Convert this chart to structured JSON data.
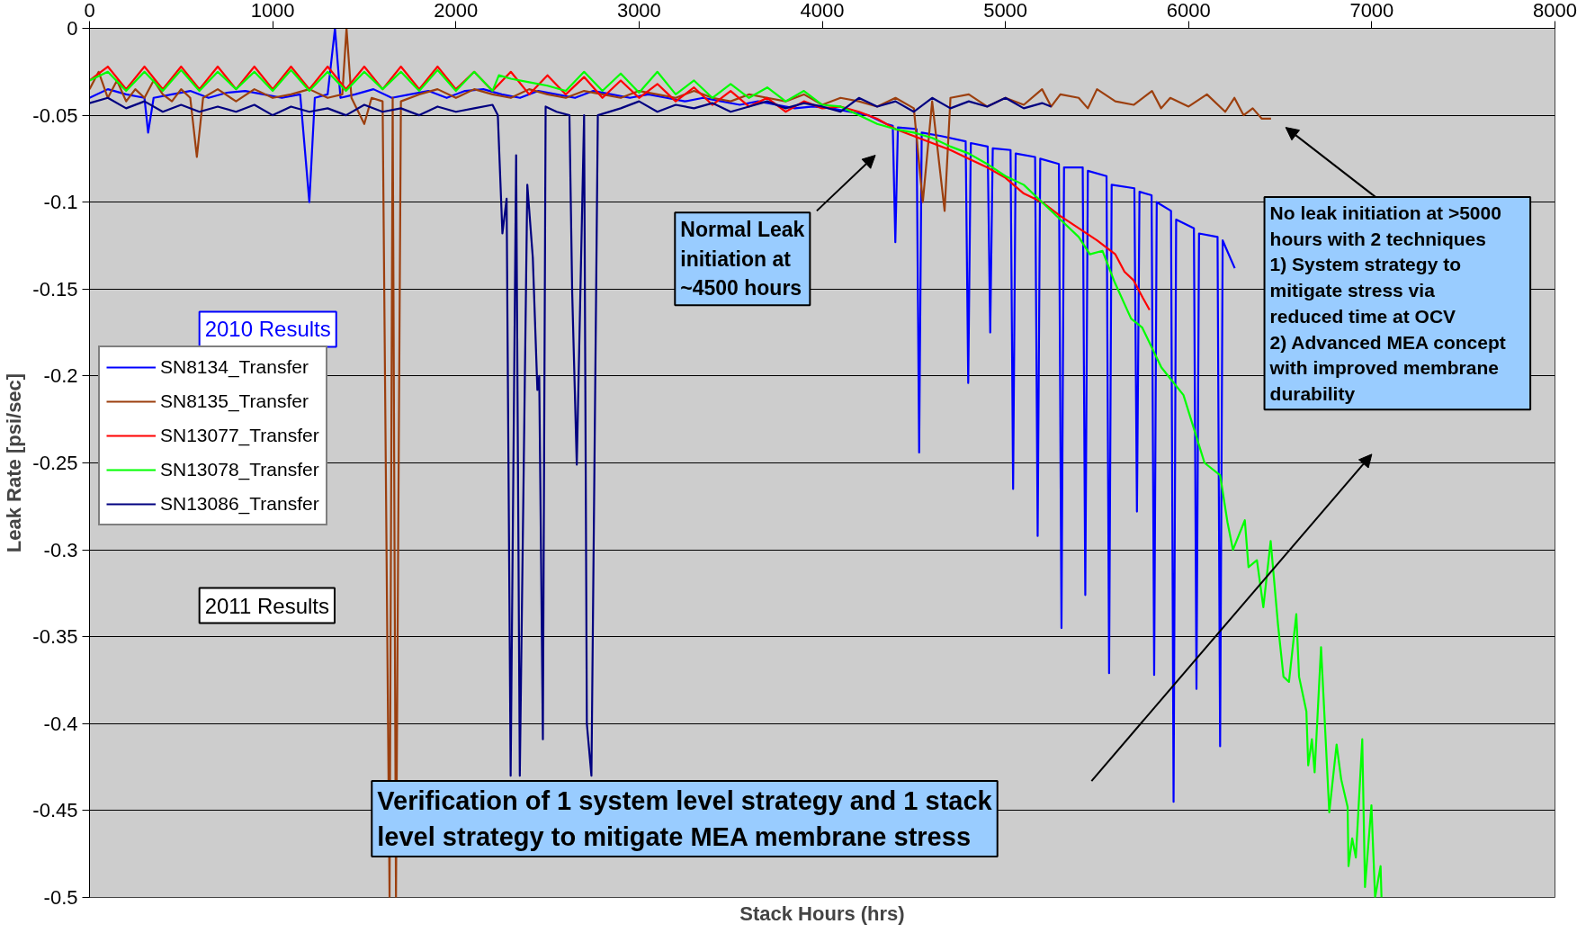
{
  "chart_data": {
    "type": "line",
    "xlabel": "Stack Hours (hrs)",
    "ylabel": "Leak Rate [psi/sec]",
    "xlim": [
      0,
      8000
    ],
    "xticks": [
      0,
      1000,
      2000,
      3000,
      4000,
      5000,
      6000,
      7000,
      8000
    ],
    "ylim": [
      -0.5,
      0
    ],
    "yticks": [
      0,
      -0.05,
      -0.1,
      -0.15,
      -0.2,
      -0.25,
      -0.3,
      -0.35,
      -0.4,
      -0.45,
      -0.5
    ],
    "grid": "y",
    "legend": "left",
    "line_style": "solid",
    "marker": "none",
    "annotations": [
      "2010 Results",
      "2011 Results",
      "Normal Leak\ninitiation at\n~4500 hours",
      "No leak initiation at >5000\nhours with 2 techniques\n  1) System strategy to\n      mitigate stress via\n      reduced time at OCV\n2) Advanced MEA concept\n     with improved membrane\n     durability",
      "Verification of 1 system level strategy and 1 stack\nlevel strategy to mitigate MEA membrane stress"
    ],
    "series": [
      {
        "name": "SN8134_Transfer",
        "color": "#0000ff",
        "x": [
          0,
          100,
          200,
          300,
          320,
          350,
          450,
          550,
          650,
          750,
          850,
          950,
          1050,
          1150,
          1200,
          1230,
          1300,
          1340,
          1370,
          1450,
          1550,
          1650,
          1750,
          1850,
          1950,
          2050,
          2150,
          2250,
          2350,
          2450,
          2550,
          2650,
          2750,
          2850,
          2950,
          3050,
          3150,
          3250,
          3350,
          3450,
          3550,
          3650,
          3750,
          3850,
          3950,
          4050,
          4150,
          4250,
          4350,
          4385,
          4399,
          4413,
          4515,
          4529,
          4543,
          4650,
          4783,
          4797,
          4811,
          4903,
          4917,
          4931,
          5028,
          5042,
          5056,
          5162,
          5176,
          5190,
          5292,
          5306,
          5320,
          5422,
          5436,
          5450,
          5552,
          5566,
          5580,
          5704,
          5718,
          5732,
          5798,
          5812,
          5826,
          5904,
          5918,
          5932,
          6029,
          6043,
          6057,
          6158,
          6172,
          6186,
          6252
        ],
        "values": [
          -0.04,
          -0.035,
          -0.038,
          -0.04,
          -0.06,
          -0.04,
          -0.038,
          -0.036,
          -0.04,
          -0.037,
          -0.036,
          -0.038,
          -0.04,
          -0.038,
          -0.1,
          -0.04,
          -0.038,
          0,
          -0.04,
          -0.038,
          -0.035,
          -0.04,
          -0.038,
          -0.036,
          -0.04,
          -0.036,
          -0.035,
          -0.038,
          -0.04,
          -0.036,
          -0.038,
          -0.04,
          -0.036,
          -0.038,
          -0.04,
          -0.038,
          -0.04,
          -0.042,
          -0.04,
          -0.042,
          -0.044,
          -0.042,
          -0.044,
          -0.046,
          -0.045,
          -0.046,
          -0.048,
          -0.05,
          -0.055,
          -0.056,
          -0.123,
          -0.057,
          -0.058,
          -0.244,
          -0.06,
          -0.062,
          -0.065,
          -0.204,
          -0.066,
          -0.068,
          -0.175,
          -0.069,
          -0.07,
          -0.265,
          -0.072,
          -0.074,
          -0.292,
          -0.075,
          -0.078,
          -0.345,
          -0.08,
          -0.08,
          -0.326,
          -0.082,
          -0.085,
          -0.371,
          -0.09,
          -0.092,
          -0.278,
          -0.094,
          -0.096,
          -0.372,
          -0.1,
          -0.105,
          -0.445,
          -0.11,
          -0.115,
          -0.38,
          -0.118,
          -0.12,
          -0.413,
          -0.122,
          -0.138
        ]
      },
      {
        "name": "SN8135_Transfer",
        "color": "#9c3f0e",
        "x": [
          0,
          50,
          100,
          150,
          200,
          250,
          300,
          350,
          400,
          450,
          500,
          550,
          586,
          620,
          700,
          800,
          900,
          1000,
          1100,
          1200,
          1300,
          1380,
          1403,
          1430,
          1500,
          1540,
          1600,
          1638,
          1655,
          1673,
          1700,
          1800,
          1900,
          2000,
          2100,
          2200,
          2300,
          2400,
          2500,
          2600,
          2700,
          2800,
          2900,
          3000,
          3100,
          3200,
          3300,
          3400,
          3500,
          3600,
          3700,
          3800,
          3900,
          4000,
          4100,
          4200,
          4300,
          4400,
          4500,
          4549,
          4600,
          4668,
          4700,
          4800,
          4900,
          5000,
          5100,
          5200,
          5250,
          5300,
          5400,
          5450,
          5500,
          5600,
          5700,
          5800,
          5850,
          5900,
          6000,
          6100,
          6200,
          6250,
          6300,
          6350,
          6400,
          6450
        ],
        "values": [
          -0.035,
          -0.025,
          -0.04,
          -0.03,
          -0.042,
          -0.035,
          -0.04,
          -0.03,
          -0.038,
          -0.042,
          -0.035,
          -0.04,
          -0.074,
          -0.04,
          -0.035,
          -0.042,
          -0.035,
          -0.04,
          -0.038,
          -0.035,
          -0.04,
          -0.038,
          0,
          -0.04,
          -0.055,
          -0.04,
          -0.042,
          -0.5,
          -0.04,
          -0.5,
          -0.042,
          -0.038,
          -0.035,
          -0.04,
          -0.035,
          -0.038,
          -0.04,
          -0.035,
          -0.038,
          -0.04,
          -0.036,
          -0.038,
          -0.04,
          -0.036,
          -0.038,
          -0.04,
          -0.036,
          -0.04,
          -0.042,
          -0.038,
          -0.04,
          -0.042,
          -0.038,
          -0.044,
          -0.04,
          -0.042,
          -0.045,
          -0.04,
          -0.046,
          -0.1,
          -0.042,
          -0.105,
          -0.04,
          -0.038,
          -0.045,
          -0.04,
          -0.044,
          -0.035,
          -0.045,
          -0.038,
          -0.04,
          -0.046,
          -0.035,
          -0.042,
          -0.044,
          -0.036,
          -0.046,
          -0.04,
          -0.045,
          -0.038,
          -0.048,
          -0.04,
          -0.05,
          -0.046,
          -0.052,
          -0.052
        ]
      },
      {
        "name": "SN13077_Transfer",
        "color": "#ff0000",
        "x": [
          0,
          100,
          200,
          300,
          400,
          500,
          600,
          700,
          800,
          900,
          1000,
          1100,
          1200,
          1300,
          1400,
          1500,
          1600,
          1700,
          1800,
          1900,
          2000,
          2100,
          2200,
          2300,
          2400,
          2500,
          2600,
          2700,
          2800,
          2900,
          3000,
          3100,
          3200,
          3300,
          3400,
          3500,
          3600,
          3700,
          3800,
          3900,
          4000,
          4100,
          4200,
          4300,
          4400,
          4500,
          4600,
          4700,
          4800,
          4900,
          5000,
          5100,
          5200,
          5300,
          5400,
          5500,
          5600,
          5650,
          5700,
          5750,
          5787
        ],
        "values": [
          -0.03,
          -0.022,
          -0.035,
          -0.022,
          -0.035,
          -0.022,
          -0.035,
          -0.022,
          -0.035,
          -0.022,
          -0.035,
          -0.022,
          -0.035,
          -0.022,
          -0.035,
          -0.022,
          -0.035,
          -0.022,
          -0.035,
          -0.022,
          -0.035,
          -0.025,
          -0.036,
          -0.025,
          -0.038,
          -0.027,
          -0.038,
          -0.028,
          -0.04,
          -0.03,
          -0.04,
          -0.032,
          -0.042,
          -0.034,
          -0.044,
          -0.036,
          -0.045,
          -0.04,
          -0.048,
          -0.042,
          -0.046,
          -0.045,
          -0.048,
          -0.052,
          -0.058,
          -0.062,
          -0.066,
          -0.07,
          -0.075,
          -0.08,
          -0.086,
          -0.095,
          -0.1,
          -0.108,
          -0.115,
          -0.122,
          -0.13,
          -0.14,
          -0.145,
          -0.155,
          -0.162
        ]
      },
      {
        "name": "SN13078_Transfer",
        "color": "#00ff00",
        "x": [
          0,
          100,
          200,
          300,
          400,
          500,
          600,
          700,
          800,
          900,
          1000,
          1100,
          1200,
          1300,
          1400,
          1500,
          1600,
          1700,
          1800,
          1900,
          2000,
          2100,
          2200,
          2235,
          2300,
          2400,
          2500,
          2600,
          2700,
          2800,
          2900,
          3000,
          3100,
          3200,
          3300,
          3400,
          3500,
          3600,
          3700,
          3800,
          3900,
          4000,
          4100,
          4200,
          4300,
          4400,
          4500,
          4600,
          4700,
          4800,
          4900,
          5000,
          5100,
          5200,
          5300,
          5400,
          5461,
          5530,
          5596,
          5686,
          5746,
          5851,
          5972,
          6087,
          6172,
          6212,
          6242,
          6307,
          6327,
          6373,
          6408,
          6448,
          6488,
          6518,
          6548,
          6588,
          6603,
          6643,
          6653,
          6673,
          6688,
          6723,
          6768,
          6808,
          6833,
          6868,
          6873,
          6893,
          6913,
          6948,
          6963,
          6998,
          7018,
          7048,
          7053
        ],
        "values": [
          -0.03,
          -0.025,
          -0.036,
          -0.025,
          -0.036,
          -0.024,
          -0.036,
          -0.025,
          -0.035,
          -0.025,
          -0.036,
          -0.024,
          -0.036,
          -0.025,
          -0.036,
          -0.025,
          -0.035,
          -0.025,
          -0.036,
          -0.024,
          -0.036,
          -0.025,
          -0.036,
          -0.027,
          -0.029,
          -0.031,
          -0.033,
          -0.036,
          -0.025,
          -0.036,
          -0.026,
          -0.037,
          -0.025,
          -0.038,
          -0.03,
          -0.04,
          -0.032,
          -0.04,
          -0.034,
          -0.042,
          -0.036,
          -0.044,
          -0.045,
          -0.05,
          -0.055,
          -0.058,
          -0.06,
          -0.063,
          -0.068,
          -0.072,
          -0.078,
          -0.085,
          -0.09,
          -0.1,
          -0.11,
          -0.12,
          -0.13,
          -0.128,
          -0.146,
          -0.167,
          -0.172,
          -0.195,
          -0.211,
          -0.25,
          -0.257,
          -0.284,
          -0.3,
          -0.283,
          -0.31,
          -0.306,
          -0.333,
          -0.295,
          -0.343,
          -0.373,
          -0.376,
          -0.337,
          -0.373,
          -0.393,
          -0.424,
          -0.409,
          -0.428,
          -0.356,
          -0.451,
          -0.412,
          -0.432,
          -0.448,
          -0.482,
          -0.466,
          -0.477,
          -0.409,
          -0.494,
          -0.447,
          -0.5,
          -0.482,
          -0.5
        ]
      },
      {
        "name": "SN13086_Transfer",
        "color": "#000080",
        "x": [
          0,
          100,
          200,
          300,
          400,
          500,
          600,
          700,
          800,
          900,
          1000,
          1100,
          1200,
          1300,
          1400,
          1500,
          1600,
          1700,
          1800,
          1900,
          2000,
          2100,
          2200,
          2229,
          2254,
          2277,
          2299,
          2329,
          2349,
          2390,
          2420,
          2445,
          2455,
          2475,
          2490,
          2550,
          2620,
          2635,
          2660,
          2700,
          2715,
          2740,
          2775,
          2900,
          3000,
          3100,
          3200,
          3300,
          3400,
          3500,
          3600,
          3700,
          3800,
          3900,
          4000,
          4100,
          4200,
          4300,
          4400,
          4500,
          4600,
          4700,
          4800,
          4900,
          5000,
          5100,
          5200,
          5250
        ],
        "values": [
          -0.043,
          -0.04,
          -0.046,
          -0.042,
          -0.048,
          -0.044,
          -0.048,
          -0.045,
          -0.048,
          -0.044,
          -0.05,
          -0.045,
          -0.048,
          -0.046,
          -0.05,
          -0.044,
          -0.048,
          -0.046,
          -0.05,
          -0.045,
          -0.048,
          -0.046,
          -0.044,
          -0.05,
          -0.118,
          -0.098,
          -0.43,
          -0.073,
          -0.43,
          -0.09,
          -0.132,
          -0.208,
          -0.2,
          -0.409,
          -0.045,
          -0.048,
          -0.05,
          -0.152,
          -0.251,
          -0.05,
          -0.4,
          -0.43,
          -0.05,
          -0.046,
          -0.042,
          -0.048,
          -0.044,
          -0.046,
          -0.043,
          -0.048,
          -0.045,
          -0.042,
          -0.046,
          -0.043,
          -0.045,
          -0.048,
          -0.04,
          -0.045,
          -0.042,
          -0.048,
          -0.04,
          -0.046,
          -0.042,
          -0.045,
          -0.04,
          -0.046,
          -0.043,
          -0.045
        ]
      }
    ]
  }
}
